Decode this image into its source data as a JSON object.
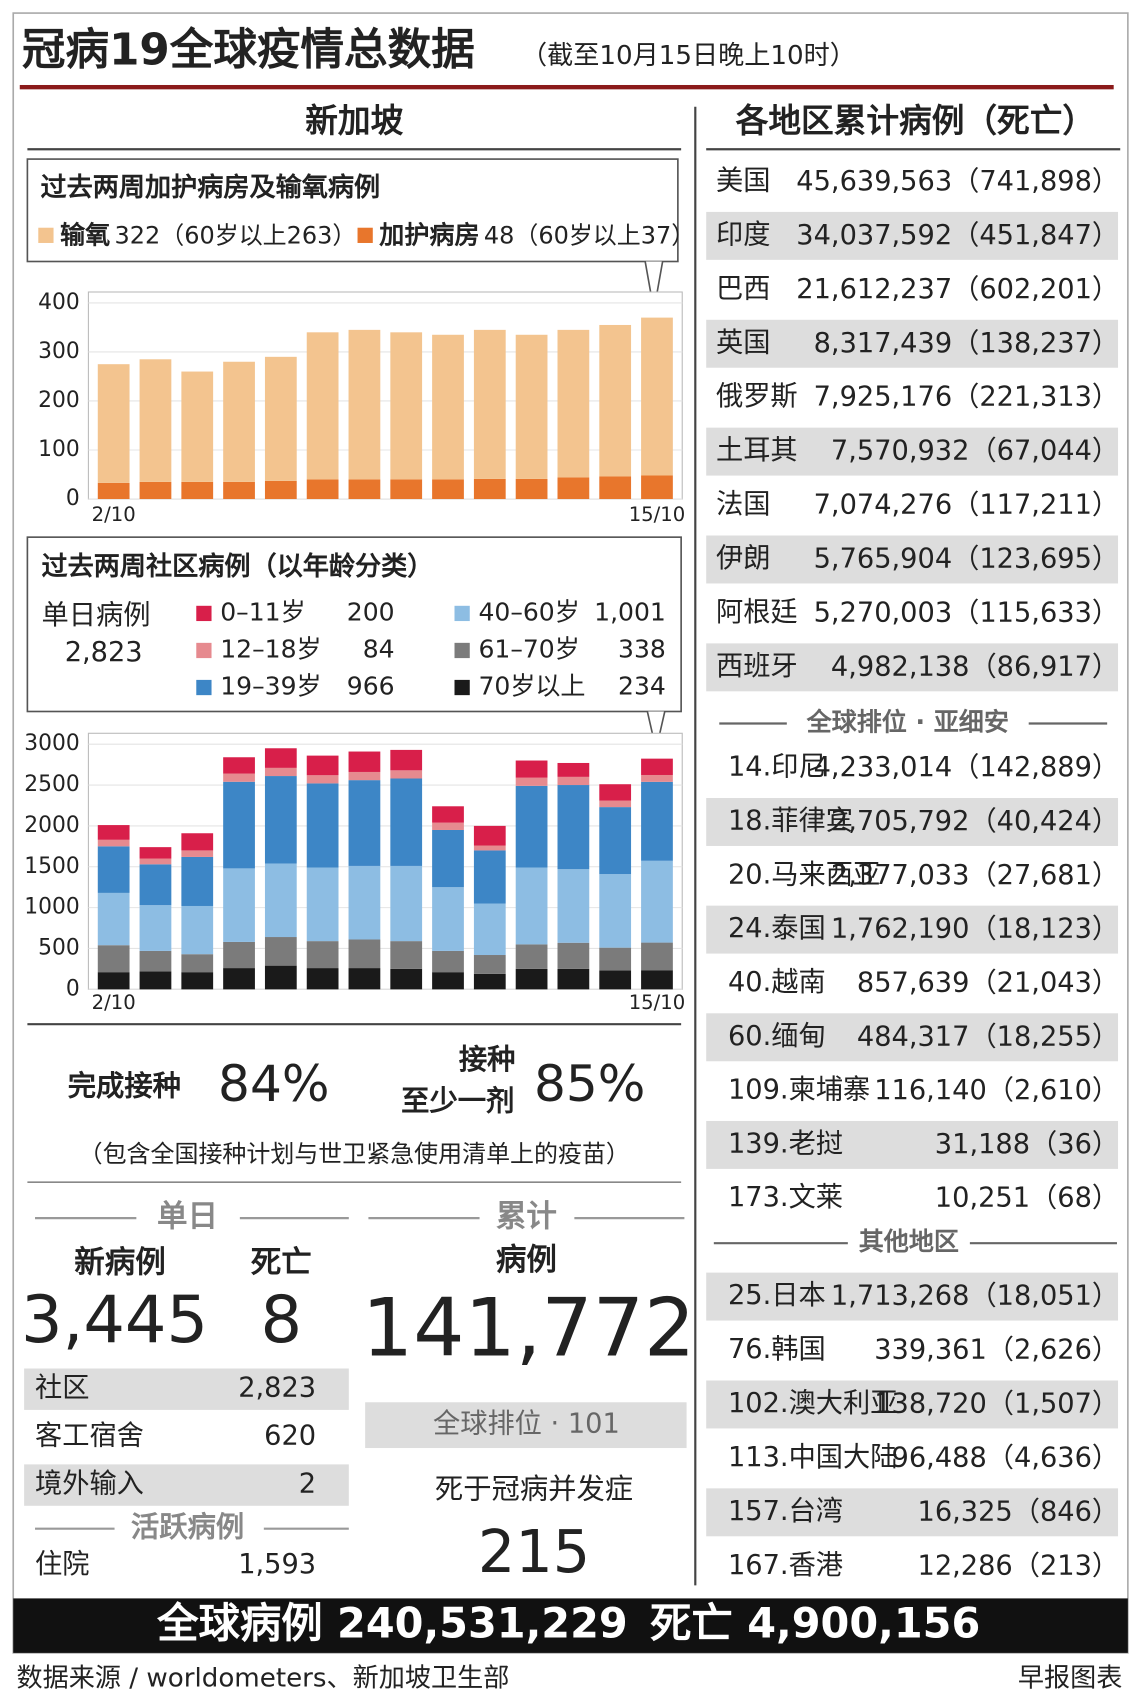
{
  "header": {
    "title": "冠病19全球疫情总数据",
    "subtitle": "（截至10月15日晚上10时）"
  },
  "singapore": {
    "heading": "新加坡"
  },
  "chart_data": [
    {
      "type": "bar",
      "stacked": true,
      "title": "过去两周加护病房及输氧病例",
      "categories": [
        "2/10",
        null,
        null,
        null,
        null,
        null,
        null,
        null,
        null,
        null,
        null,
        null,
        null,
        "15/10"
      ],
      "ylim": [
        0,
        400
      ],
      "yticks": [
        0,
        100,
        200,
        300,
        400
      ],
      "grid": true,
      "series": [
        {
          "name": "输氧",
          "legend_note": "322（60岁以上263）",
          "color": "#f3c48f",
          "values": [
            242,
            250,
            225,
            245,
            253,
            300,
            305,
            300,
            295,
            304,
            294,
            301,
            309,
            322
          ]
        },
        {
          "name": "加护病房",
          "legend_note": "48（60岁以上37）",
          "color": "#e8762c",
          "values": [
            33,
            35,
            35,
            35,
            37,
            40,
            40,
            40,
            40,
            41,
            41,
            44,
            46,
            48
          ]
        }
      ]
    },
    {
      "type": "bar",
      "stacked": true,
      "title": "过去两周社区病例（以年龄分类）",
      "total_label": "单日病例",
      "total": "2,823",
      "categories": [
        "2/10",
        null,
        null,
        null,
        null,
        null,
        null,
        null,
        null,
        null,
        null,
        null,
        null,
        "15/10"
      ],
      "ylim": [
        0,
        3000
      ],
      "yticks": [
        0,
        500,
        1000,
        1500,
        2000,
        2500,
        3000
      ],
      "grid": true,
      "series": [
        {
          "name": "0–11岁",
          "latest": "200",
          "color": "#d81f4a",
          "values": [
            180,
            140,
            210,
            200,
            240,
            240,
            250,
            250,
            200,
            240,
            210,
            170,
            200,
            200
          ]
        },
        {
          "name": "12–18岁",
          "latest": "84",
          "color": "#e68a8f",
          "values": [
            80,
            70,
            80,
            100,
            100,
            100,
            100,
            100,
            90,
            60,
            100,
            100,
            80,
            84
          ]
        },
        {
          "name": "19–39岁",
          "latest": "966",
          "color": "#3d86c6",
          "values": [
            570,
            500,
            600,
            1060,
            1070,
            1030,
            1050,
            1070,
            700,
            650,
            1000,
            1030,
            820,
            966
          ]
        },
        {
          "name": "40–60岁",
          "latest": "1,001",
          "color": "#8dbde3",
          "values": [
            640,
            560,
            590,
            900,
            900,
            900,
            900,
            920,
            780,
            630,
            940,
            900,
            900,
            1001
          ]
        },
        {
          "name": "61–70岁",
          "latest": "338",
          "color": "#7b7b7b",
          "values": [
            330,
            250,
            220,
            320,
            350,
            330,
            350,
            340,
            260,
            230,
            300,
            320,
            280,
            338
          ]
        },
        {
          "name": "70岁以上",
          "latest": "234",
          "color": "#1a1a1a",
          "values": [
            210,
            220,
            210,
            260,
            290,
            260,
            260,
            250,
            210,
            190,
            250,
            250,
            230,
            234
          ]
        }
      ]
    }
  ],
  "vaccination": {
    "completed_label": "完成接种",
    "completed": "84%",
    "partial_label_1": "接种",
    "partial_label_2": "至少一剂",
    "partial": "85%",
    "note": "（包含全国接种计划与世卫紧急使用清单上的疫苗）"
  },
  "daily": {
    "heading": "单日",
    "new_cases_label": "新病例",
    "new_cases": "3,445",
    "deaths_label": "死亡",
    "deaths": "8",
    "rows": [
      [
        "社区",
        "2,823"
      ],
      [
        "客工宿舍",
        "620"
      ],
      [
        "境外输入",
        "2"
      ]
    ],
    "active_heading": "活跃病例",
    "active_rows": [
      [
        "住院",
        "1,593"
      ]
    ]
  },
  "cumulative": {
    "heading": "累计",
    "cases_label": "病例",
    "cases": "141,772",
    "rank": "全球排位 · 101",
    "deaths_label": "死于冠病并发症",
    "deaths": "215"
  },
  "world": {
    "heading": "各地区累计病例（死亡）",
    "top": [
      [
        "美国",
        "45,639,563",
        "（741,898）"
      ],
      [
        "印度",
        "34,037,592",
        "（451,847）"
      ],
      [
        "巴西",
        "21,612,237",
        "（602,201）"
      ],
      [
        "英国",
        "8,317,439",
        "（138,237）"
      ],
      [
        "俄罗斯",
        "7,925,176",
        "（221,313）"
      ],
      [
        "土耳其",
        "7,570,932",
        "（67,044）"
      ],
      [
        "法国",
        "7,074,276",
        "（117,211）"
      ],
      [
        "伊朗",
        "5,765,904",
        "（123,695）"
      ],
      [
        "阿根廷",
        "5,270,003",
        "（115,633）"
      ],
      [
        "西班牙",
        "4,982,138",
        "（86,917）"
      ]
    ],
    "asean_heading": "全球排位 · 亚细安",
    "asean": [
      [
        "14.印尼",
        "4,233,014",
        "（142,889）"
      ],
      [
        "18.菲律宾",
        "2,705,792",
        "（40,424）"
      ],
      [
        "20.马来西亚",
        "2,377,033",
        "（27,681）"
      ],
      [
        "24.泰国",
        "1,762,190",
        "（18,123）"
      ],
      [
        "40.越南",
        "857,639",
        "（21,043）"
      ],
      [
        "60.缅甸",
        "484,317",
        "（18,255）"
      ],
      [
        "109.柬埔寨",
        "116,140",
        "（2,610）"
      ],
      [
        "139.老挝",
        "31,188",
        "（36）"
      ],
      [
        "173.文莱",
        "10,251",
        "（68）"
      ]
    ],
    "others_heading": "其他地区",
    "others": [
      [
        "25.日本",
        "1,713,268",
        "（18,051）"
      ],
      [
        "76.韩国",
        "339,361",
        "（2,626）"
      ],
      [
        "102.澳大利亚",
        "138,720",
        "（1,507）"
      ],
      [
        "113.中国大陆",
        "96,488",
        "（4,636）"
      ],
      [
        "157.台湾",
        "16,325",
        "（846）"
      ],
      [
        "167.香港",
        "12,286",
        "（213）"
      ]
    ]
  },
  "footer": {
    "global_cases": "全球病例 240,531,229",
    "global_deaths": "死亡 4,900,156",
    "source": "数据来源 / worldometers、新加坡卫生部",
    "credit": "早报图表"
  }
}
